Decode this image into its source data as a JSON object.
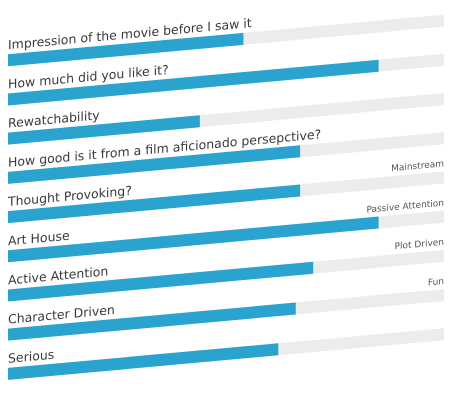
{
  "chart_data": {
    "type": "bar",
    "orientation": "horizontal",
    "title": "",
    "xlabel": "",
    "ylabel": "",
    "xlim": [
      0,
      100
    ],
    "grid": false,
    "colors": {
      "bar_fill": "#2aa3cf",
      "track": "#ececec",
      "label_text": "#3a3a3a",
      "side_text": "#555555"
    },
    "categories": [
      "Impression of the movie before I saw it",
      "How much did you like it?",
      "Rewatchability",
      "How good is it from a film aficionado persepctive?",
      "Thought Provoking?",
      "Art House",
      "Active Attention",
      "Character Driven",
      "Serious"
    ],
    "values": [
      54,
      85,
      44,
      67,
      67,
      85,
      70,
      66,
      62
    ],
    "opposite_labels": [
      "",
      "",
      "",
      "",
      "Mainstream",
      "Passive Attention",
      "Plot Driven",
      "Fun",
      ""
    ]
  }
}
